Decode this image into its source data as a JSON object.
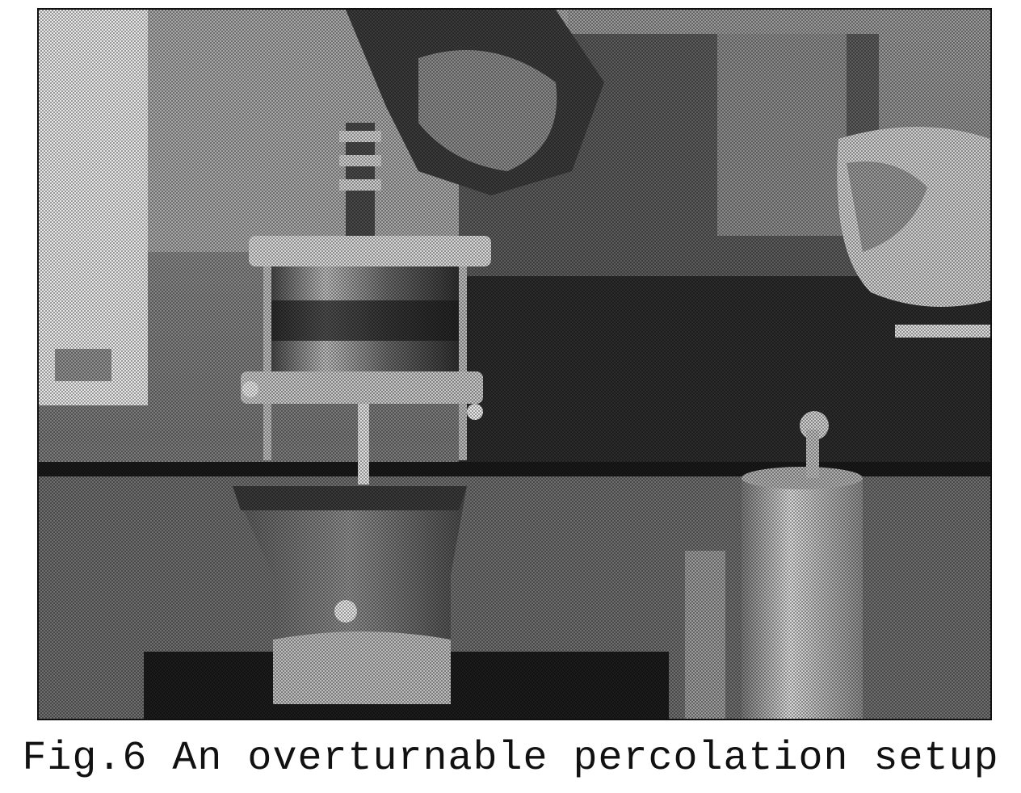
{
  "figure": {
    "caption": "Fig.6 An overturnable percolation setup",
    "photo": {
      "subject": "overturnable-percolation-apparatus-photo"
    }
  },
  "colors": {
    "background": "#ffffff",
    "caption_text": "#111111",
    "frame": "#111111"
  }
}
